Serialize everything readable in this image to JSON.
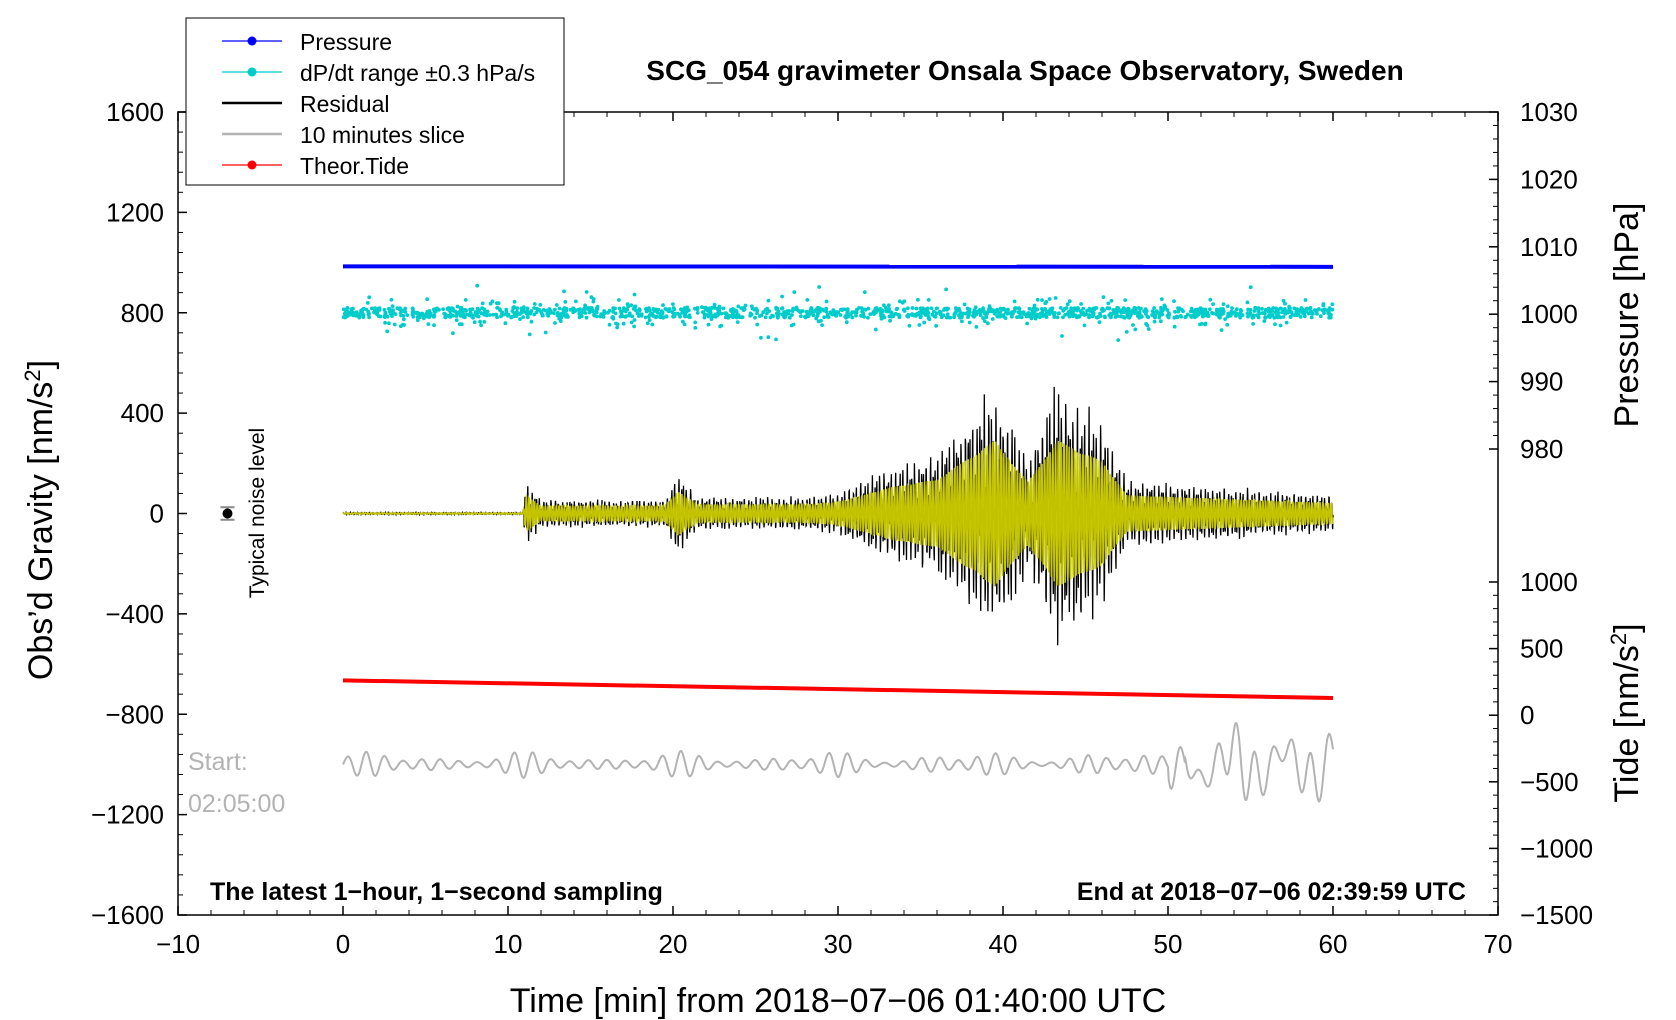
{
  "chart_data": {
    "type": "line",
    "title": "SCG_054 gravimeter Onsala Space Observatory, Sweden",
    "xlabel": "Time [min] from 2018−07−06 01:40:00 UTC",
    "ylabel_left": "Obs’d Gravity [nm/s",
    "ylabel_left_sup": "2",
    "ylabel_left_close": "]",
    "ylabel_right_pressure": "Pressure [hPa]",
    "ylabel_right_tide": "Tide [nm/s",
    "ylabel_right_tide_sup": "2",
    "ylabel_right_tide_close": "]",
    "xlim": [
      -10,
      70
    ],
    "ylim_left": [
      -1600,
      1600
    ],
    "x_ticks": [
      "−10",
      "0",
      "10",
      "20",
      "30",
      "40",
      "50",
      "60",
      "70"
    ],
    "y_ticks_left": [
      "1600",
      "1200",
      "800",
      "400",
      "0",
      "−400",
      "−800",
      "−1200",
      "−1600"
    ],
    "pressure_ticks": [
      "1030",
      "1020",
      "1010",
      "1000",
      "990",
      "980"
    ],
    "pressure_range": [
      980,
      1030
    ],
    "tide_ticks": [
      "1000",
      "500",
      "0",
      "−500",
      "−1000",
      "−1500"
    ],
    "tide_range": [
      -1500,
      1000
    ],
    "annotation_bottom_left": "The latest 1−hour, 1−second sampling",
    "annotation_bottom_right": "End at 2018−07−06 02:39:59 UTC",
    "noise_label": "Typical noise level",
    "noise_level": {
      "x": -7,
      "y": 0,
      "err": 25
    },
    "slice_start_label": "Start:",
    "slice_start_time": "02:05:00",
    "legend": [
      {
        "label": "Pressure",
        "color": "#0000ff",
        "marker": true
      },
      {
        "label": "dP/dt range ±0.3 hPa/s",
        "color": "#00cccc",
        "marker": true
      },
      {
        "label": "Residual",
        "color": "#000000",
        "marker": false
      },
      {
        "label": "10 minutes slice",
        "color": "#b3b3b3",
        "marker": false
      },
      {
        "label": "Theor.Tide",
        "color": "#ff0000",
        "marker": true
      }
    ],
    "series": [
      {
        "name": "Pressure",
        "color": "#0000ff",
        "x_range": [
          0,
          60
        ],
        "y_start": 985,
        "y_end": 983,
        "axis": "left"
      },
      {
        "name": "dP/dt range ±0.3 hPa/s",
        "color": "#00cccc",
        "x_range": [
          0,
          60
        ],
        "y_center": 800,
        "axis": "left"
      },
      {
        "name": "Residual",
        "color": "#000000",
        "x_range": [
          0,
          60
        ],
        "axis": "left"
      },
      {
        "name": "Residual (filtered)",
        "color": "#cccc00",
        "x_range": [
          0,
          60
        ],
        "axis": "left"
      },
      {
        "name": "10 minutes slice",
        "color": "#b3b3b3",
        "x_range": [
          0,
          60
        ],
        "y_center": -1000,
        "axis": "left"
      },
      {
        "name": "Theor.Tide",
        "color": "#ff0000",
        "x_range": [
          0,
          60
        ],
        "y_start": -665,
        "y_end": -735,
        "axis": "left"
      }
    ],
    "envelope": [
      {
        "x": 0,
        "amp": 5
      },
      {
        "x": 10.9,
        "amp": 5
      },
      {
        "x": 11.1,
        "amp": 140
      },
      {
        "x": 12,
        "amp": 60
      },
      {
        "x": 19.5,
        "amp": 60
      },
      {
        "x": 20.3,
        "amp": 170
      },
      {
        "x": 21.5,
        "amp": 70
      },
      {
        "x": 28,
        "amp": 70
      },
      {
        "x": 30,
        "amp": 90
      },
      {
        "x": 33.5,
        "amp": 210
      },
      {
        "x": 36,
        "amp": 260
      },
      {
        "x": 39.5,
        "amp": 560
      },
      {
        "x": 41.5,
        "amp": 240
      },
      {
        "x": 43.3,
        "amp": 560
      },
      {
        "x": 46,
        "amp": 400
      },
      {
        "x": 47.5,
        "amp": 140
      },
      {
        "x": 60,
        "amp": 80
      }
    ]
  }
}
